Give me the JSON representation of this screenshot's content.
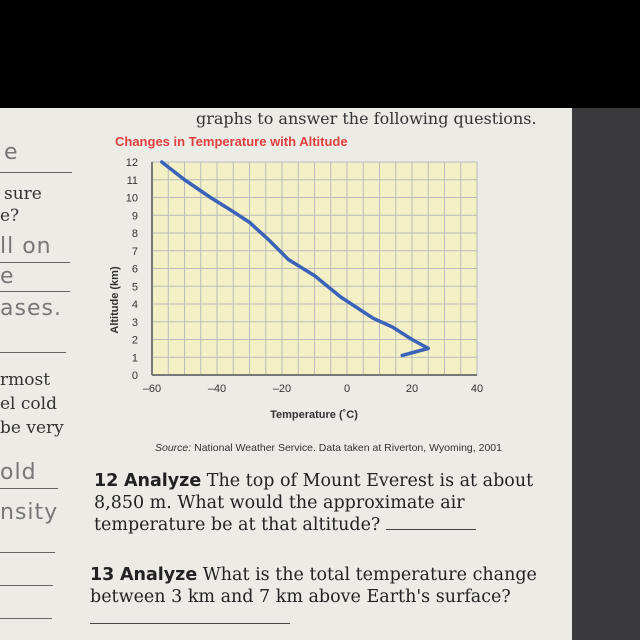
{
  "page": {
    "top_text": "graphs to answer the following questions.",
    "left_margin": {
      "printed": [
        "sure",
        "e?",
        "rmost",
        "el cold",
        "be very"
      ],
      "handwritten": [
        "e",
        "ll on",
        "e",
        "ases.",
        "old",
        "nsity"
      ]
    },
    "source_label": "Source:",
    "source_text": " National Weather Service. Data taken at Riverton, Wyoming, 2001",
    "questions": [
      {
        "number": "12",
        "verb": "Analyze",
        "text": "The top of Mount Everest is at about 8,850 m. What would the approximate air temperature be at that altitude?"
      },
      {
        "number": "13",
        "verb": "Analyze",
        "text": "What is the total temperature change between 3 km and 7 km above Earth's surface?"
      }
    ]
  },
  "chart_data": {
    "type": "line",
    "title": "Changes in Temperature with Altitude",
    "xlabel": "Temperature (˚C)",
    "ylabel": "Altitude (km)",
    "xlim": [
      -60,
      40
    ],
    "ylim": [
      0,
      12
    ],
    "xticks": [
      "-60",
      "-40",
      "-20",
      "0",
      "20",
      "40"
    ],
    "yticks": [
      "0",
      "1",
      "2",
      "3",
      "4",
      "5",
      "6",
      "7",
      "8",
      "9",
      "10",
      "11",
      "12"
    ],
    "grid": true,
    "colors": {
      "title": "#e0413f",
      "line": "#3a62b8",
      "plot_fill": "#f2f0c4"
    },
    "series": [
      {
        "x": [
          -57,
          -50,
          -42,
          -35,
          -30,
          -24,
          -18,
          -10,
          -2,
          8,
          14,
          20,
          25,
          17
        ],
        "y": [
          12,
          11,
          10,
          9.2,
          8.6,
          7.6,
          6.5,
          5.6,
          4.4,
          3.2,
          2.7,
          2,
          1.5,
          1.1
        ]
      }
    ]
  }
}
